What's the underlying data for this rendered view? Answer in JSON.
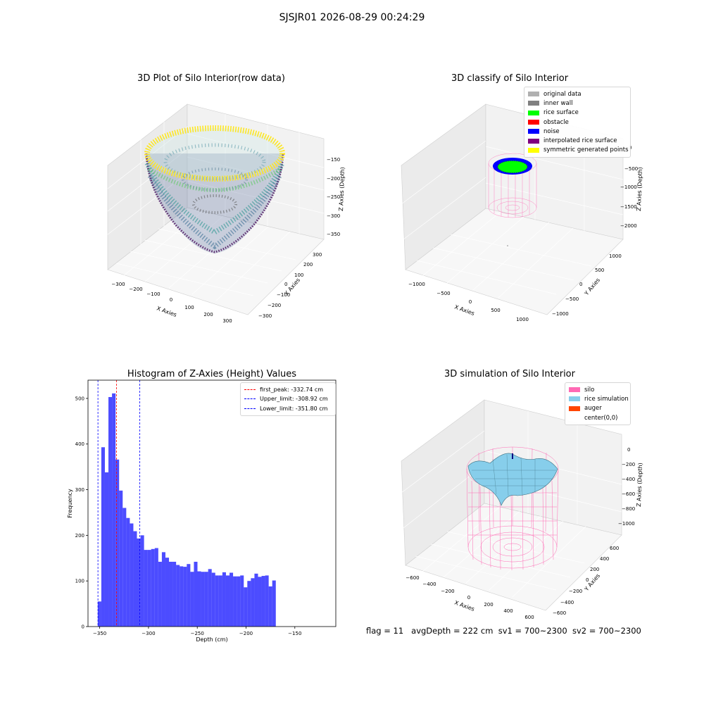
{
  "suptitle": "SJSJR01 2026-08-29 00:24:29",
  "colors": {
    "viridis": [
      "#440154",
      "#3b528b",
      "#21918c",
      "#5ec962",
      "#fde725"
    ],
    "silo": "#ff69b4",
    "rice": "#87ceeb",
    "auger": "#ff4500",
    "hist": "#0000ff",
    "pane": "#f2f2f2"
  },
  "panels": {
    "raw": {
      "title": "3D Plot of Silo Interior(row data)",
      "xlabel": "X Axies",
      "ylabel": "Y Axies",
      "zlabel": "Z Axies (Depth)",
      "xticks": [
        "−300",
        "−200",
        "−100",
        "0",
        "100",
        "200",
        "300"
      ],
      "yticks": [
        "−300",
        "−200",
        "−100",
        "0",
        "100",
        "200",
        "300"
      ],
      "zticks": [
        "−150",
        "−200",
        "−250",
        "−300",
        "−350"
      ]
    },
    "classify": {
      "title": "3D classify of Silo Interior",
      "xlabel": "X Axies",
      "ylabel": "Y Axies",
      "zlabel": "Z Axies (Depth)",
      "xticks": [
        "−1000",
        "−500",
        "0",
        "500",
        "1000"
      ],
      "yticks": [
        "−1000",
        "−500",
        "0",
        "500",
        "1000"
      ],
      "zticks": [
        "0",
        "−500",
        "−1000",
        "−1500",
        "−2000"
      ],
      "legend": [
        {
          "label": "original data",
          "color": "#b0b0b0"
        },
        {
          "label": "inner wall",
          "color": "#808080"
        },
        {
          "label": "rice surface",
          "color": "#00ff00"
        },
        {
          "label": "obstacle",
          "color": "#ff0000"
        },
        {
          "label": "noise",
          "color": "#0000ff"
        },
        {
          "label": "interpolated rice surface",
          "color": "#800080"
        },
        {
          "label": "symmetric generated points",
          "color": "#ffff00"
        }
      ]
    },
    "simulation": {
      "title": "3D simulation of Silo Interior",
      "xlabel": "X Axies",
      "ylabel": "Y Axies",
      "zlabel": "Z Axies (Depth)",
      "xticks": [
        "−600",
        "−400",
        "−200",
        "0",
        "200",
        "400",
        "600"
      ],
      "yticks": [
        "−600",
        "−400",
        "−200",
        "0",
        "200",
        "400",
        "600"
      ],
      "zticks": [
        "0",
        "−200",
        "−400",
        "−600",
        "−800",
        "−1000"
      ],
      "legend": [
        {
          "label": "silo",
          "color": "#ff69b4"
        },
        {
          "label": "rice simulation",
          "color": "#87ceeb"
        },
        {
          "label": "auger",
          "color": "#ff4500"
        },
        {
          "label": "center(0,0)",
          "color": ""
        }
      ]
    }
  },
  "footer": {
    "flag": "flag = 11",
    "avg_depth": "avgDepth = 222 cm",
    "sv1": "sv1 = 700~2300",
    "sv2": "sv2 = 700~2300"
  },
  "chart_data": {
    "type": "bar",
    "title": "Histogram of Z-Axies (Height) Values",
    "xlabel": "Depth (cm)",
    "ylabel": "Frequency",
    "xlim": [
      -362,
      -108
    ],
    "ylim": [
      0,
      540
    ],
    "xticks": [
      -350,
      -300,
      -250,
      -200,
      -150
    ],
    "yticks": [
      0,
      100,
      200,
      300,
      400,
      500
    ],
    "bin_start": -352.0,
    "bin_width": 3.65,
    "values": [
      55,
      393,
      338,
      503,
      511,
      366,
      298,
      260,
      238,
      226,
      209,
      193,
      200,
      168,
      168,
      170,
      172,
      142,
      163,
      151,
      142,
      142,
      135,
      132,
      131,
      137,
      120,
      142,
      121,
      120,
      120,
      126,
      118,
      112,
      112,
      119,
      112,
      118,
      110,
      110,
      112,
      86,
      100,
      106,
      116,
      109,
      111,
      112,
      88,
      101
    ],
    "vlines": [
      {
        "x": -332.74,
        "color": "#ff0000",
        "label": "first_peak: -332.74 cm"
      },
      {
        "x": -308.92,
        "color": "#0000ff",
        "label": "Upper_limit: -308.92 cm"
      },
      {
        "x": -351.8,
        "color": "#0000ff",
        "label": "Lower_limit: -351.80 cm"
      }
    ],
    "legend_position": "top-right",
    "grid": false
  }
}
